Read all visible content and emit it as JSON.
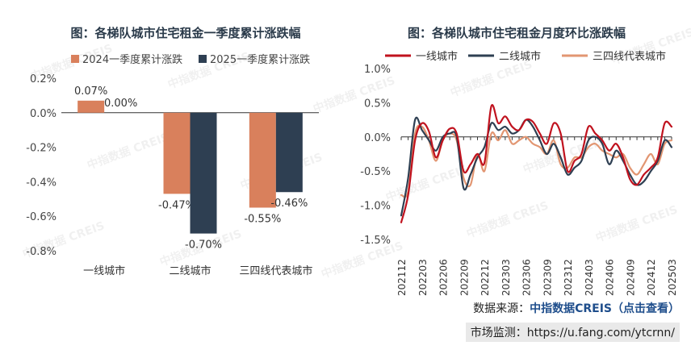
{
  "chart_data": [
    {
      "type": "bar",
      "title": "图：各梯队城市住宅租金一季度累计涨跌幅",
      "categories": [
        "一线城市",
        "二线城市",
        "三四线代表城市"
      ],
      "series": [
        {
          "name": "2024一季度累计涨跌",
          "values": [
            0.07,
            -0.47,
            -0.55
          ],
          "labels": [
            "0.07%",
            "-0.47%",
            "-0.55%"
          ],
          "color": "#d9805c"
        },
        {
          "name": "2025一季度累计涨跌",
          "values": [
            0.0,
            -0.7,
            -0.46
          ],
          "labels": [
            "0.00%",
            "-0.70%",
            "-0.46%"
          ],
          "color": "#2e3f52"
        }
      ],
      "ylim": [
        -0.8,
        0.2
      ],
      "yticks": [
        0.2,
        0,
        -0.2,
        -0.4,
        -0.6,
        -0.8
      ],
      "ytick_labels": [
        "0.2%",
        "0.0%",
        "-0.2%",
        "-0.4%",
        "-0.6%",
        "-0.8%"
      ],
      "legend_position": "top"
    },
    {
      "type": "line",
      "title": "图：各梯队城市住宅租金月度环比涨跌幅",
      "x": [
        "202112",
        "202201",
        "202202",
        "202203",
        "202204",
        "202205",
        "202206",
        "202207",
        "202208",
        "202209",
        "202210",
        "202211",
        "202212",
        "202301",
        "202302",
        "202303",
        "202304",
        "202305",
        "202306",
        "202307",
        "202308",
        "202309",
        "202310",
        "202311",
        "202312",
        "202401",
        "202402",
        "202403",
        "202404",
        "202405",
        "202406",
        "202407",
        "202408",
        "202409",
        "202410",
        "202411",
        "202412",
        "202501",
        "202502",
        "202503"
      ],
      "xtick_labels": [
        "202112",
        "202203",
        "202206",
        "202209",
        "202212",
        "202303",
        "202306",
        "202309",
        "202312",
        "202403",
        "202406",
        "202409",
        "202412",
        "202503"
      ],
      "ylim": [
        -1.5,
        1.0
      ],
      "yticks": [
        1.0,
        0.5,
        0.0,
        -0.5,
        -1.0,
        -1.5
      ],
      "ytick_labels": [
        "1.0%",
        "0.5%",
        "0.0%",
        "-0.5%",
        "-1.0%",
        "-1.5%"
      ],
      "legend_position": "top",
      "series": [
        {
          "name": "一线城市",
          "color": "#c0121e",
          "values": [
            -1.25,
            -0.85,
            -0.05,
            0.2,
            0.08,
            -0.3,
            -0.05,
            0.12,
            0.05,
            -0.5,
            -0.4,
            -0.25,
            -0.38,
            0.45,
            0.2,
            0.3,
            0.15,
            0.1,
            0.25,
            0.22,
            0.05,
            -0.1,
            0.2,
            0.05,
            -0.5,
            -0.35,
            -0.25,
            0.15,
            0.05,
            -0.05,
            -0.2,
            -0.1,
            -0.3,
            -0.62,
            -0.7,
            -0.55,
            -0.45,
            -0.3,
            0.2,
            0.15
          ]
        },
        {
          "name": "二线城市",
          "color": "#2e3f52",
          "values": [
            -1.15,
            -0.6,
            0.25,
            0.1,
            -0.05,
            -0.2,
            0.0,
            0.05,
            0.0,
            -0.75,
            -0.55,
            -0.3,
            -0.15,
            0.2,
            0.1,
            0.15,
            0.05,
            0.1,
            0.25,
            0.15,
            -0.05,
            -0.25,
            -0.1,
            -0.3,
            -0.55,
            -0.45,
            -0.35,
            -0.05,
            0.0,
            -0.1,
            -0.4,
            -0.2,
            -0.35,
            -0.55,
            -0.7,
            -0.65,
            -0.5,
            -0.35,
            -0.05,
            -0.15
          ]
        },
        {
          "name": "三四线代表城市",
          "color": "#e29672",
          "values": [
            -0.85,
            -0.8,
            0.05,
            0.15,
            -0.05,
            -0.35,
            -0.05,
            0.05,
            -0.05,
            -0.6,
            -0.7,
            -0.25,
            -0.5,
            0.05,
            -0.05,
            0.1,
            -0.1,
            -0.05,
            0.0,
            -0.1,
            -0.15,
            -0.25,
            -0.05,
            -0.4,
            -0.45,
            -0.3,
            -0.3,
            -0.15,
            -0.1,
            -0.2,
            -0.25,
            -0.3,
            -0.25,
            -0.45,
            -0.55,
            -0.4,
            -0.25,
            -0.4,
            -0.1,
            -0.05
          ]
        }
      ]
    }
  ],
  "watermark": "中指数据 CREIS",
  "footer": {
    "source_label": "数据来源：",
    "source_link": "中指数据CREIS（点击查看）",
    "monitor": "市场监测：https://u.fang.com/ytcrnn/"
  }
}
